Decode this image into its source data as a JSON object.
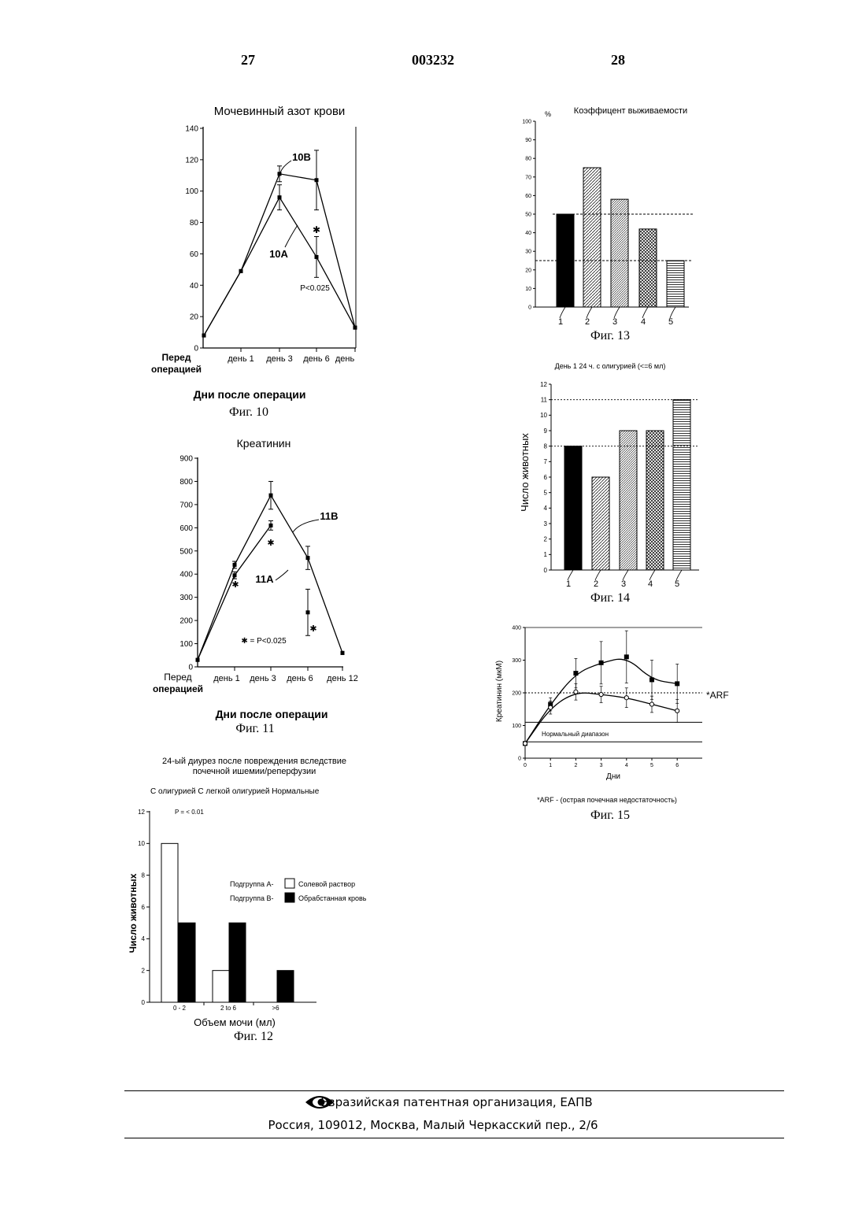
{
  "header": {
    "left_page": "27",
    "doc_number": "003232",
    "right_page": "28"
  },
  "figures": {
    "fig10": {
      "caption": "Фиг. 10",
      "x_ticks": [
        "Перед операцией",
        "день 1",
        "день 3",
        "день 6",
        "день"
      ],
      "label_10b": "10В",
      "label_10a": "10А",
      "p_note": "P<0.025",
      "star": "✱"
    },
    "fig11": {
      "caption": "Фиг. 11",
      "x_ticks": [
        "Перед операцией",
        "день 1",
        "день 3",
        "день 6",
        "день 12"
      ],
      "label_11b": "11В",
      "label_11a": "11А",
      "p_note": "✱ = P<0.025",
      "star": "✱"
    },
    "fig12": {
      "caption": "Фиг. 12",
      "subtitle": "С олигурией С легкой олигурией Нормальные",
      "p_note": "P = < 0.01",
      "legend": [
        {
          "prefix": "Подгруппа А-",
          "label": "Солевой раствор"
        },
        {
          "prefix": "Подгруппа В-",
          "label": "Обрабстанная кровь"
        }
      ]
    },
    "fig13": {
      "caption": "Фиг. 13",
      "percent": "%"
    },
    "fig14": {
      "caption": "Фиг. 14"
    },
    "fig15": {
      "caption": "Фиг. 15",
      "arf_label": "*ARF",
      "normal_range": "Нормальный диапазон",
      "footnote": "*ARF - (острая почечная недостаточность)"
    }
  },
  "chart_data": [
    {
      "id": "fig10",
      "type": "line",
      "title": "Мочевинный азот крови",
      "xlabel": "Дни после операции",
      "ylabel": "",
      "ylim": [
        0,
        140
      ],
      "yticks": [
        0,
        20,
        40,
        60,
        80,
        100,
        120,
        140
      ],
      "x": [
        0,
        1,
        2,
        3,
        4
      ],
      "series": [
        {
          "name": "10В",
          "values": [
            8,
            49,
            111,
            107,
            13
          ],
          "errors": [
            0,
            0,
            5,
            19,
            0
          ]
        },
        {
          "name": "10А",
          "values": [
            8,
            49,
            96,
            58,
            13
          ],
          "errors": [
            0,
            0,
            8,
            13,
            0
          ]
        }
      ],
      "grid": false
    },
    {
      "id": "fig11",
      "type": "line",
      "title": "Креатинин",
      "xlabel": "Дни после операции",
      "ylabel": "",
      "ylim": [
        0,
        900
      ],
      "yticks": [
        0,
        100,
        200,
        300,
        400,
        500,
        600,
        700,
        800,
        900
      ],
      "x": [
        0,
        1,
        2,
        3,
        4
      ],
      "series": [
        {
          "name": "11В",
          "values": [
            30,
            440,
            740,
            470,
            60
          ],
          "errors": [
            0,
            15,
            60,
            50,
            0
          ]
        },
        {
          "name": "11А",
          "values": [
            30,
            395,
            610,
            235,
            60
          ],
          "errors": [
            0,
            15,
            20,
            100,
            0
          ]
        }
      ],
      "grid": false
    },
    {
      "id": "fig12",
      "type": "bar",
      "title": "24-ый диурез после повреждения вследствие почечной ишемии/реперфузии",
      "xlabel": "Объем мочи (мл)",
      "ylabel": "Число животных",
      "categories": [
        "0 - 2",
        "2 to 6",
        ">6"
      ],
      "ylim": [
        0,
        12
      ],
      "yticks": [
        0,
        2,
        4,
        6,
        8,
        10,
        12
      ],
      "series": [
        {
          "name": "Солевой раствор",
          "values": [
            10,
            2,
            0
          ]
        },
        {
          "name": "Обрабстанная кровь",
          "values": [
            5,
            5,
            2
          ]
        }
      ],
      "grid": false
    },
    {
      "id": "fig13",
      "type": "bar",
      "title": "Коэффицент выживаемости",
      "xlabel": "",
      "ylabel": "%",
      "categories": [
        "1",
        "2",
        "3",
        "4",
        "5"
      ],
      "values": [
        50,
        75,
        58,
        42,
        25
      ],
      "ylim": [
        0,
        100
      ],
      "yticks": [
        0,
        10,
        20,
        30,
        40,
        50,
        60,
        70,
        80,
        90,
        100
      ],
      "reference_lines": [
        50,
        25
      ],
      "grid": false
    },
    {
      "id": "fig14",
      "type": "bar",
      "title": "День 1 24 ч. с олигурией (<=6 мл)",
      "xlabel": "",
      "ylabel": "Число животных",
      "categories": [
        "1",
        "2",
        "3",
        "4",
        "5"
      ],
      "values": [
        8,
        6,
        9,
        9,
        11
      ],
      "ylim": [
        0,
        12
      ],
      "yticks": [
        0,
        1,
        2,
        3,
        4,
        5,
        6,
        7,
        8,
        9,
        10,
        11,
        12
      ],
      "reference_lines": [
        11,
        8
      ],
      "grid": false
    },
    {
      "id": "fig15",
      "type": "line",
      "title": "",
      "xlabel": "Дни",
      "ylabel": "Креатинин (мкМ)",
      "x": [
        0,
        1,
        2,
        3,
        4,
        5,
        6
      ],
      "ylim": [
        0,
        400
      ],
      "yticks": [
        0,
        100,
        200,
        300,
        400
      ],
      "series": [
        {
          "name": "",
          "marker": "square",
          "values": [
            45,
            165,
            260,
            292,
            310,
            240,
            228
          ],
          "errors": [
            0,
            20,
            45,
            65,
            80,
            60,
            60
          ]
        },
        {
          "name": "",
          "marker": "circle",
          "values": [
            45,
            155,
            203,
            195,
            185,
            165,
            145
          ],
          "errors": [
            0,
            20,
            25,
            25,
            30,
            25,
            35
          ]
        }
      ],
      "reference_lines": [
        200,
        110,
        50
      ],
      "grid": false
    }
  ],
  "footer": {
    "org": "Евразийская патентная организация, ЕАПВ",
    "address": "Россия, 109012, Москва, Малый Черкасский пер., 2/6"
  }
}
